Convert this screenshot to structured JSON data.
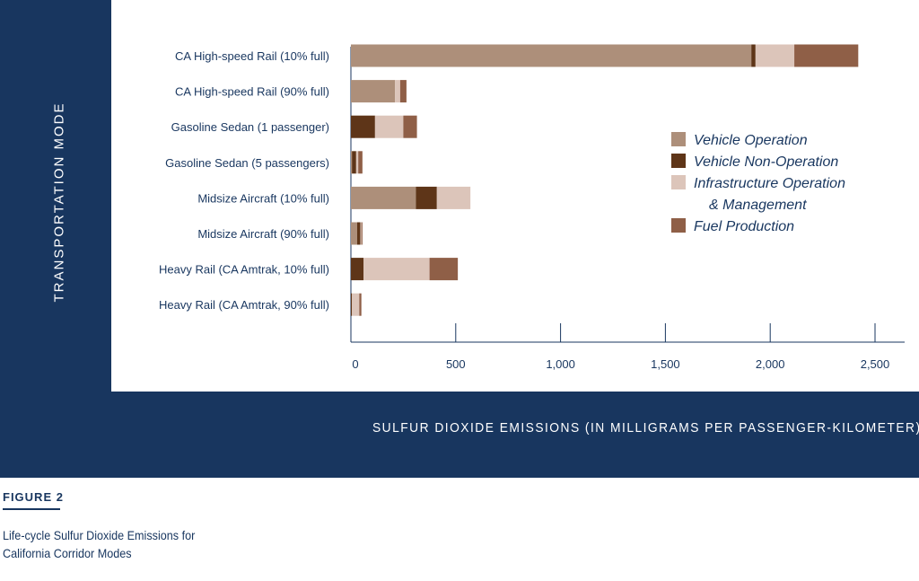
{
  "chart_data": {
    "type": "bar",
    "orientation": "horizontal",
    "stacked": true,
    "xlabel": "SULFUR DIOXIDE EMISSIONS (IN MILLIGRAMS PER PASSENGER-KILOMETER)",
    "ylabel": "TRANSPORTATION MODE",
    "xlim": [
      0,
      2500
    ],
    "ticks": [
      0,
      500,
      1000,
      1500,
      2000,
      2500
    ],
    "tick_labels": [
      "0",
      "500",
      "1,000",
      "1,500",
      "2,000",
      "2,500"
    ],
    "legend_position": "right",
    "categories": [
      "CA High-speed Rail (10% full)",
      "CA High-speed Rail (90% full)",
      "Gasoline Sedan (1 passenger)",
      "Gasoline Sedan (5 passengers)",
      "Midsize Aircraft (10% full)",
      "Midsize Aircraft (90% full)",
      "Heavy Rail (CA Amtrak, 10% full)",
      "Heavy Rail (CA Amtrak, 90% full)"
    ],
    "series": [
      {
        "name": "Vehicle Operation",
        "color": "#ad8f7a",
        "values": [
          1910,
          210,
          0,
          5,
          310,
          30,
          0,
          0
        ]
      },
      {
        "name": "Vehicle Non-Operation",
        "color": "#5e3518",
        "values": [
          20,
          0,
          115,
          20,
          100,
          15,
          60,
          5
        ]
      },
      {
        "name": "Infrastructure Operation & Management",
        "color": "#dcc5ba",
        "values": [
          185,
          25,
          135,
          10,
          160,
          5,
          315,
          35
        ]
      },
      {
        "name": "Fuel Production",
        "color": "#8f5f47",
        "values": [
          305,
          30,
          65,
          20,
          0,
          5,
          135,
          10
        ]
      }
    ],
    "legend_lines": [
      [
        "Vehicle Operation"
      ],
      [
        "Vehicle Non-Operation"
      ],
      [
        "Infrastructure Operation",
        "& Management"
      ],
      [
        "Fuel Production"
      ]
    ]
  },
  "figure_label": "FIGURE 2",
  "caption": "Life-cycle Sulfur Dioxide Emissions for California Corridor Modes"
}
